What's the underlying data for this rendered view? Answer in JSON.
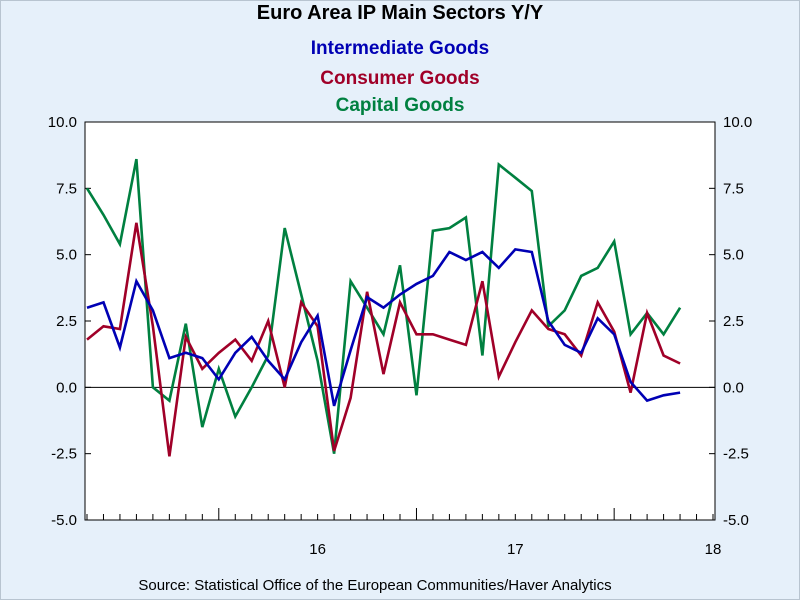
{
  "chart_data": {
    "type": "line",
    "title": "Euro Area IP Main Sectors Y/Y",
    "xlabel": "",
    "ylabel": "",
    "ylim": [
      -5.0,
      10.0
    ],
    "yticks": [
      "-5.0",
      "-2.5",
      "0.0",
      "2.5",
      "5.0",
      "7.5",
      "10.0"
    ],
    "ytick_values": [
      -5.0,
      -2.5,
      0.0,
      2.5,
      5.0,
      7.5,
      10.0
    ],
    "x_range": [
      "2015-05",
      "2018-07"
    ],
    "year_labels": [
      {
        "label": "16",
        "month": "2016-07"
      },
      {
        "label": "17",
        "month": "2017-07"
      },
      {
        "label": "18",
        "month": "2018-07"
      }
    ],
    "zero_line": true,
    "grid": false,
    "legend_position": "top-center",
    "start_month": "2015-05",
    "series": [
      {
        "name": "Intermediate Goods",
        "color": "#0000b4",
        "values": [
          3.0,
          3.2,
          1.5,
          4.0,
          2.9,
          1.1,
          1.3,
          1.1,
          0.3,
          1.3,
          1.9,
          1.0,
          0.3,
          1.7,
          2.7,
          -0.7,
          1.4,
          3.4,
          3.0,
          3.5,
          3.9,
          4.2,
          5.1,
          4.8,
          5.1,
          4.5,
          5.2,
          5.1,
          2.5,
          1.6,
          1.3,
          2.6,
          2.0,
          0.2,
          -0.5,
          -0.3,
          -0.2
        ]
      },
      {
        "name": "Consumer Goods",
        "color": "#a00028",
        "values": [
          1.8,
          2.3,
          2.2,
          6.2,
          2.3,
          -2.6,
          1.9,
          0.7,
          1.3,
          1.8,
          1.0,
          2.5,
          0.0,
          3.2,
          2.3,
          -2.4,
          -0.4,
          3.6,
          0.5,
          3.2,
          2.0,
          2.0,
          1.8,
          1.6,
          4.0,
          0.4,
          1.7,
          2.9,
          2.2,
          2.0,
          1.2,
          3.2,
          2.1,
          -0.2,
          2.8,
          1.2,
          0.9
        ]
      },
      {
        "name": "Capital Goods",
        "color": "#008040",
        "values": [
          7.5,
          6.5,
          5.4,
          8.6,
          0.0,
          -0.5,
          2.4,
          -1.5,
          0.7,
          -1.1,
          0.0,
          1.2,
          6.0,
          3.5,
          1.0,
          -2.5,
          4.0,
          3.0,
          2.0,
          4.6,
          -0.3,
          5.9,
          6.0,
          6.4,
          1.2,
          8.4,
          7.9,
          7.4,
          2.3,
          2.9,
          4.2,
          4.5,
          5.5,
          2.0,
          2.8,
          2.0,
          3.0
        ]
      }
    ]
  },
  "legend_order": [
    "Intermediate Goods",
    "Consumer Goods",
    "Capital Goods"
  ],
  "source": "Source:  Statistical Office of the European Communities/Haver Analytics"
}
